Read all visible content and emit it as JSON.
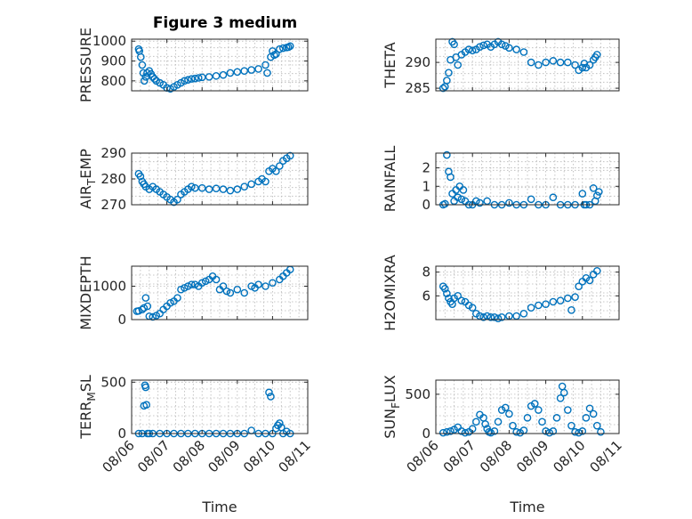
{
  "chart_data": {
    "title": "Figure 3 medium",
    "marker_color": "#0072BD",
    "marker": "circle",
    "grid": true,
    "x_tick_labels": [
      "08/06",
      "08/07",
      "08/08",
      "08/09",
      "08/10",
      "08/11"
    ],
    "xlabel": "Time",
    "subplots": [
      {
        "type": "scatter",
        "ylabel": "PRESSURE",
        "xlim": [
          0,
          5
        ],
        "ylim": [
          750,
          1010
        ],
        "yticks": [
          800,
          900,
          1000
        ],
        "x": [
          0.2,
          0.22,
          0.26,
          0.3,
          0.33,
          0.36,
          0.4,
          0.44,
          0.5,
          0.55,
          0.6,
          0.65,
          0.7,
          0.8,
          0.9,
          1.0,
          1.1,
          1.2,
          1.3,
          1.4,
          1.5,
          1.6,
          1.7,
          1.8,
          1.9,
          2.0,
          2.2,
          2.4,
          2.6,
          2.8,
          3.0,
          3.2,
          3.4,
          3.6,
          3.8,
          3.85,
          3.95,
          4.0,
          4.05,
          4.1,
          4.2,
          4.3,
          4.4,
          4.45,
          4.5
        ],
        "y": [
          960,
          950,
          920,
          880,
          840,
          800,
          820,
          840,
          850,
          835,
          820,
          810,
          800,
          790,
          780,
          765,
          760,
          770,
          780,
          790,
          800,
          805,
          810,
          812,
          815,
          818,
          820,
          825,
          830,
          840,
          845,
          850,
          855,
          860,
          880,
          840,
          920,
          950,
          930,
          935,
          960,
          965,
          968,
          970,
          975
        ]
      },
      {
        "type": "scatter",
        "ylabel": "THETA",
        "xlim": [
          0,
          5
        ],
        "ylim": [
          284.5,
          294.5
        ],
        "yticks": [
          285,
          290
        ],
        "x": [
          0.2,
          0.25,
          0.3,
          0.35,
          0.4,
          0.45,
          0.5,
          0.55,
          0.6,
          0.7,
          0.8,
          0.9,
          1.0,
          1.1,
          1.2,
          1.3,
          1.4,
          1.5,
          1.6,
          1.7,
          1.8,
          1.9,
          2.0,
          2.2,
          2.4,
          2.6,
          2.8,
          3.0,
          3.2,
          3.4,
          3.6,
          3.8,
          3.9,
          4.0,
          4.05,
          4.1,
          4.2,
          4.3,
          4.35,
          4.4
        ],
        "y": [
          285,
          285.3,
          286.5,
          288,
          290.5,
          294,
          293.5,
          291,
          289.5,
          291.5,
          292,
          292.5,
          292.3,
          292.5,
          293,
          293.3,
          293.5,
          293,
          293.5,
          294,
          293.5,
          293.2,
          292.8,
          292.5,
          292,
          290,
          289.5,
          290,
          290.3,
          290,
          290,
          289.5,
          288.5,
          289,
          289.8,
          289,
          289.5,
          290.5,
          291,
          291.5
        ]
      },
      {
        "type": "scatter",
        "ylabel": "AIRTEMP",
        "ylabel_main": "AIR",
        "ylabel_sub": "T",
        "ylabel_rest": "EMP",
        "xlim": [
          0,
          5
        ],
        "ylim": [
          270,
          290
        ],
        "yticks": [
          270,
          280,
          290
        ],
        "x": [
          0.2,
          0.25,
          0.3,
          0.35,
          0.4,
          0.5,
          0.6,
          0.7,
          0.8,
          0.9,
          1.0,
          1.1,
          1.2,
          1.3,
          1.4,
          1.5,
          1.6,
          1.7,
          1.8,
          2.0,
          2.2,
          2.4,
          2.6,
          2.8,
          3.0,
          3.2,
          3.4,
          3.6,
          3.7,
          3.8,
          3.9,
          4.0,
          4.1,
          4.2,
          4.3,
          4.4,
          4.5
        ],
        "y": [
          282,
          281,
          279,
          278,
          277,
          276,
          277,
          276,
          275,
          274,
          273,
          272,
          271,
          272,
          274,
          275,
          276,
          277,
          276.5,
          276.5,
          276,
          276.3,
          276,
          275.5,
          276,
          277,
          278,
          279,
          280,
          279,
          283,
          284,
          283,
          285,
          287,
          288,
          289
        ]
      },
      {
        "type": "scatter",
        "ylabel": "RAINFALL",
        "xlim": [
          0,
          5
        ],
        "ylim": [
          0,
          2.8
        ],
        "yticks": [
          0,
          1,
          2
        ],
        "x": [
          0.2,
          0.25,
          0.3,
          0.35,
          0.4,
          0.45,
          0.5,
          0.55,
          0.6,
          0.65,
          0.7,
          0.75,
          0.8,
          0.9,
          1.0,
          1.1,
          1.2,
          1.4,
          1.6,
          1.8,
          2.0,
          2.2,
          2.4,
          2.6,
          2.8,
          3.0,
          3.2,
          3.4,
          3.6,
          3.8,
          4.0,
          4.05,
          4.1,
          4.2,
          4.3,
          4.35,
          4.4,
          4.45
        ],
        "y": [
          0,
          0.05,
          2.7,
          1.8,
          1.5,
          0.6,
          0.2,
          0.8,
          0.4,
          1.0,
          0.3,
          0.8,
          0.2,
          0,
          0,
          0.2,
          0.1,
          0.2,
          0,
          0,
          0.1,
          0,
          0,
          0.3,
          0,
          0,
          0.4,
          0,
          0,
          0,
          0.6,
          0,
          0,
          0,
          0.9,
          0.2,
          0.5,
          0.7
        ]
      },
      {
        "type": "scatter",
        "ylabel": "MIXDEPTH",
        "xlim": [
          0,
          5
        ],
        "ylim": [
          0,
          1600
        ],
        "yticks": [
          0,
          1000
        ],
        "x": [
          0.15,
          0.2,
          0.3,
          0.35,
          0.4,
          0.45,
          0.5,
          0.6,
          0.7,
          0.8,
          0.9,
          1.0,
          1.1,
          1.2,
          1.3,
          1.4,
          1.5,
          1.6,
          1.7,
          1.8,
          1.9,
          2.0,
          2.1,
          2.2,
          2.3,
          2.4,
          2.5,
          2.6,
          2.7,
          2.8,
          3.0,
          3.2,
          3.4,
          3.5,
          3.6,
          3.8,
          4.0,
          4.2,
          4.3,
          4.4,
          4.5
        ],
        "y": [
          250,
          260,
          300,
          350,
          650,
          400,
          100,
          80,
          120,
          180,
          300,
          400,
          500,
          550,
          650,
          900,
          950,
          1000,
          1050,
          1050,
          1000,
          1100,
          1150,
          1200,
          1300,
          1200,
          900,
          1000,
          850,
          800,
          900,
          800,
          1000,
          950,
          1050,
          1000,
          1100,
          1200,
          1300,
          1400,
          1500
        ]
      },
      {
        "type": "scatter",
        "ylabel": "H2OMIXRA",
        "xlim": [
          0,
          5
        ],
        "ylim": [
          4,
          8.5
        ],
        "yticks": [
          6,
          8
        ],
        "x": [
          0.2,
          0.25,
          0.3,
          0.35,
          0.4,
          0.45,
          0.5,
          0.6,
          0.7,
          0.8,
          0.9,
          1.0,
          1.1,
          1.2,
          1.3,
          1.4,
          1.5,
          1.6,
          1.7,
          1.8,
          2.0,
          2.2,
          2.4,
          2.6,
          2.8,
          3.0,
          3.2,
          3.4,
          3.6,
          3.7,
          3.8,
          3.9,
          4.0,
          4.1,
          4.2,
          4.3,
          4.4
        ],
        "y": [
          6.8,
          6.6,
          6.2,
          5.8,
          5.5,
          5.3,
          5.8,
          6.0,
          5.6,
          5.5,
          5.2,
          5.0,
          4.5,
          4.3,
          4.2,
          4.3,
          4.2,
          4.2,
          4.1,
          4.2,
          4.3,
          4.3,
          4.5,
          5.0,
          5.2,
          5.3,
          5.5,
          5.6,
          5.8,
          4.8,
          5.9,
          6.8,
          7.2,
          7.5,
          7.3,
          7.8,
          8.1
        ]
      },
      {
        "type": "scatter",
        "ylabel": "TERRMSL",
        "ylabel_main": "TERR",
        "ylabel_sub": "M",
        "ylabel_rest": "SL",
        "xlim": [
          0,
          5
        ],
        "ylim": [
          0,
          520
        ],
        "yticks": [
          0,
          500
        ],
        "x": [
          0.2,
          0.3,
          0.35,
          0.38,
          0.4,
          0.42,
          0.45,
          0.5,
          0.6,
          0.8,
          1.0,
          1.2,
          1.4,
          1.6,
          1.8,
          2.0,
          2.2,
          2.4,
          2.6,
          2.8,
          3.0,
          3.2,
          3.4,
          3.6,
          3.8,
          3.9,
          3.95,
          4.0,
          4.1,
          4.15,
          4.2,
          4.25,
          4.3,
          4.4,
          4.5
        ],
        "y": [
          0,
          0,
          270,
          470,
          450,
          280,
          0,
          0,
          0,
          0,
          0,
          0,
          0,
          0,
          0,
          0,
          0,
          0,
          0,
          0,
          0,
          0,
          30,
          0,
          0,
          400,
          360,
          0,
          50,
          80,
          100,
          60,
          0,
          20,
          0
        ]
      },
      {
        "type": "scatter",
        "ylabel": "SUNFLUX",
        "ylabel_main": "SUN",
        "ylabel_sub": "F",
        "ylabel_rest": "LUX",
        "xlim": [
          0,
          5
        ],
        "ylim": [
          0,
          680
        ],
        "yticks": [
          0,
          500
        ],
        "x": [
          0.2,
          0.3,
          0.4,
          0.5,
          0.6,
          0.7,
          0.8,
          0.9,
          1.0,
          1.1,
          1.2,
          1.3,
          1.35,
          1.4,
          1.45,
          1.5,
          1.6,
          1.7,
          1.8,
          1.9,
          2.0,
          2.1,
          2.2,
          2.3,
          2.4,
          2.5,
          2.6,
          2.7,
          2.8,
          2.9,
          3.0,
          3.1,
          3.2,
          3.3,
          3.4,
          3.45,
          3.5,
          3.6,
          3.7,
          3.8,
          3.9,
          4.0,
          4.1,
          4.2,
          4.3,
          4.4,
          4.5
        ],
        "y": [
          10,
          20,
          30,
          50,
          80,
          30,
          10,
          20,
          60,
          150,
          240,
          200,
          120,
          60,
          20,
          10,
          30,
          150,
          300,
          330,
          250,
          100,
          20,
          10,
          40,
          200,
          350,
          380,
          300,
          150,
          30,
          10,
          30,
          200,
          450,
          600,
          520,
          300,
          100,
          20,
          10,
          30,
          200,
          320,
          250,
          100,
          20
        ]
      }
    ]
  }
}
